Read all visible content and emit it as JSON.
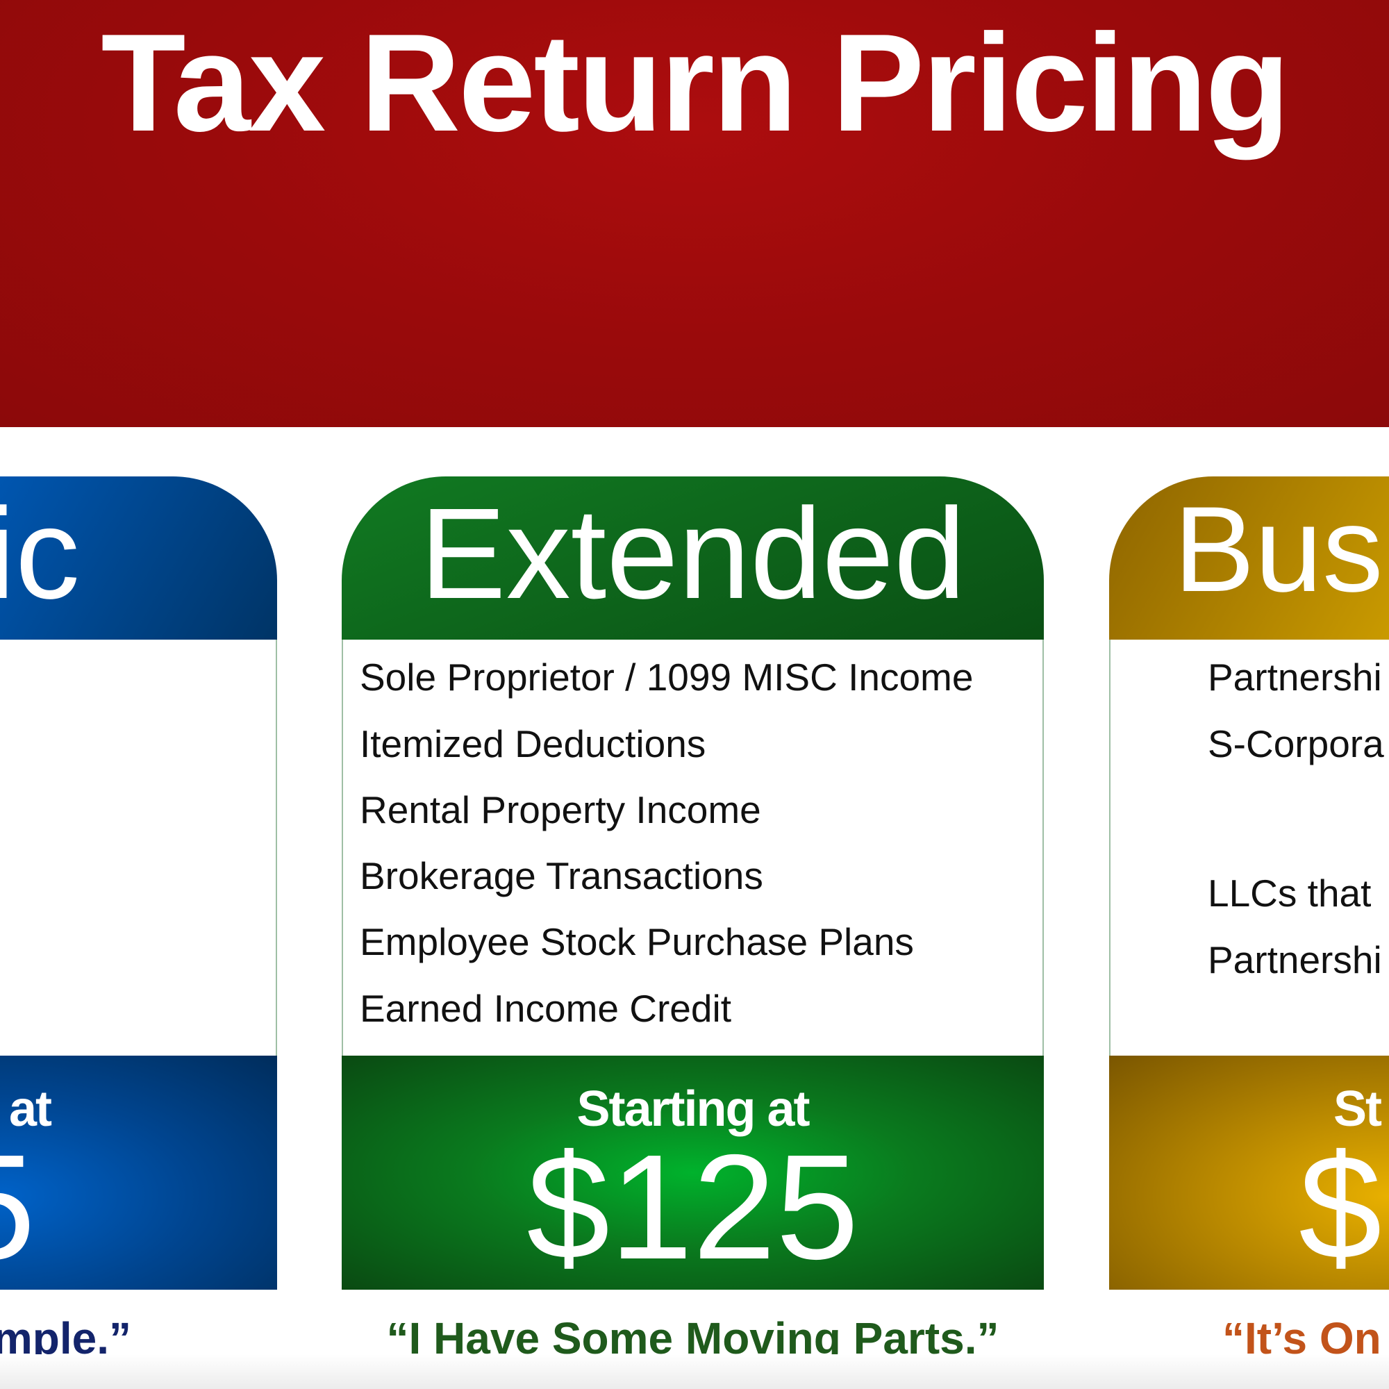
{
  "header": {
    "title": "Tax Return Pricing",
    "background_color": "#9a0a0b"
  },
  "cards": [
    {
      "name": "basic",
      "title_visible": "ic",
      "items": [],
      "starting_visible": "at",
      "price_visible": "5",
      "tagline_visible": "mple.”",
      "color": "#004a99",
      "tagline_color": "#13246b"
    },
    {
      "name": "extended",
      "title": "Extended",
      "items": [
        "Sole Proprietor / 1099 MISC Income",
        "Itemized Deductions",
        "Rental Property Income",
        "Brokerage Transactions",
        "Employee Stock Purchase Plans",
        "Earned Income Credit"
      ],
      "starting": "Starting at",
      "price": "$125",
      "tagline": "“I Have Some Moving Parts.”",
      "color": "#0a6a1a",
      "tagline_color": "#1f5a1c"
    },
    {
      "name": "business",
      "title_visible": "Bus",
      "items_visible": [
        "Partnershi",
        "S-Corpora",
        "LLCs that",
        "Partnershi"
      ],
      "starting_visible": "St",
      "price_visible": "$",
      "tagline_visible": "“It’s On",
      "color": "#b08400",
      "tagline_color": "#c2531a"
    }
  ]
}
